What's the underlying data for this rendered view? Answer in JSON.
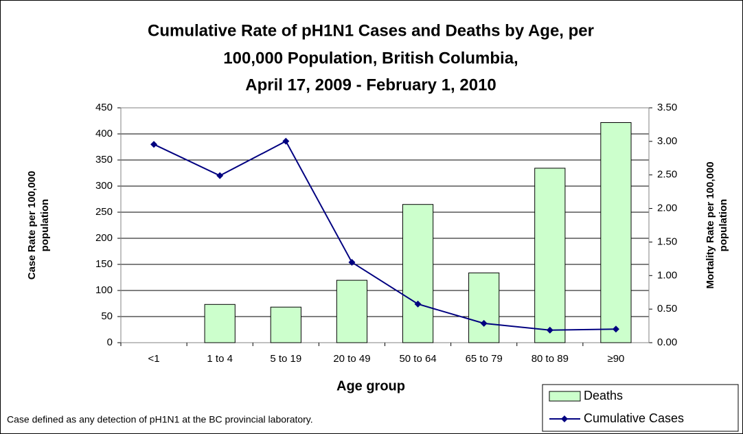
{
  "chart_data": {
    "type": "bar-line",
    "title": [
      "Cumulative Rate of pH1N1 Cases and Deaths by Age, per",
      "100,000 Population, British Columbia,",
      "April 17, 2009 - February 1, 2010"
    ],
    "x_label": "Age group",
    "y_label": [
      "Case Rate per 100,000",
      "population"
    ],
    "y2_label": [
      "Mortality Rate per 100,000",
      "population"
    ],
    "note": "Case defined as any detection of pH1N1 at the BC provincial laboratory.",
    "categories": [
      "<1",
      "1 to 4",
      "5 to 19",
      "20 to 49",
      "50 to 64",
      "65 to 79",
      "80 to 89",
      "≥90"
    ],
    "series": [
      {
        "name": "Deaths",
        "type": "bar",
        "axis": "y2",
        "color": "#ccffcc",
        "values": [
          0,
          0.57,
          0.53,
          0.93,
          2.06,
          1.04,
          2.6,
          3.28
        ]
      },
      {
        "name": "Cumulative Cases",
        "type": "line",
        "axis": "y",
        "color": "#000080",
        "values": [
          380,
          320,
          386,
          154,
          74,
          37,
          24,
          26
        ]
      }
    ],
    "ylim": [
      0,
      450
    ],
    "yticks": [
      0,
      50,
      100,
      150,
      200,
      250,
      300,
      350,
      400,
      450
    ],
    "y2lim": [
      0,
      3.5
    ],
    "y2ticks": [
      {
        "value": 0,
        "label": "0.00"
      },
      {
        "value": 0.5,
        "label": "0.50"
      },
      {
        "value": 1,
        "label": "1.00"
      },
      {
        "value": 1.5,
        "label": "1.50"
      },
      {
        "value": 2,
        "label": "2.00"
      },
      {
        "value": 2.5,
        "label": "2.50"
      },
      {
        "value": 3,
        "label": "3.00"
      },
      {
        "value": 3.5,
        "label": "3.50"
      }
    ],
    "grid": true
  }
}
